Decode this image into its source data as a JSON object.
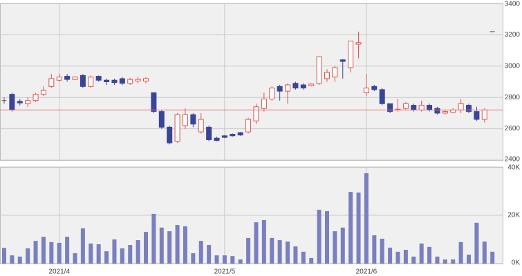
{
  "chart_data": [
    {
      "type": "candlestick",
      "open": [
        2780,
        2820,
        2775,
        2760,
        2780,
        2820,
        2870,
        2910,
        2935,
        2915,
        2940,
        2870,
        2935,
        2910,
        2910,
        2920,
        2890,
        2905,
        2905,
        2830,
        2710,
        2610,
        2520,
        2620,
        2690,
        2580,
        2610,
        2540,
        2555,
        2565,
        2575,
        2580,
        2650,
        2730,
        2790,
        2870,
        2840,
        2890,
        2880,
        2875,
        2890,
        2920,
        2930,
        3040,
        2990,
        3140,
        2830,
        2870,
        2850,
        2760,
        2720,
        2730,
        2750,
        2720,
        2750,
        2730,
        2700,
        2705,
        2720,
        2750,
        2710,
        2660,
        3220
      ],
      "high": [
        2800,
        2830,
        2790,
        2800,
        2830,
        2870,
        2950,
        2950,
        2950,
        2935,
        2950,
        2940,
        2940,
        2920,
        2920,
        2930,
        2925,
        2930,
        2930,
        2830,
        2720,
        2620,
        2700,
        2730,
        2700,
        2700,
        2620,
        2550,
        2560,
        2570,
        2580,
        2670,
        2760,
        2830,
        2870,
        2880,
        2890,
        2900,
        2890,
        2890,
        3060,
        2980,
        3000,
        3045,
        3160,
        3220,
        2950,
        2880,
        2860,
        2760,
        2790,
        2770,
        2760,
        2780,
        2760,
        2740,
        2720,
        2730,
        2790,
        2760,
        2740,
        2730,
        3220
      ],
      "low": [
        2760,
        2710,
        2750,
        2740,
        2770,
        2810,
        2860,
        2900,
        2900,
        2910,
        2860,
        2860,
        2900,
        2880,
        2880,
        2880,
        2880,
        2890,
        2890,
        2700,
        2600,
        2500,
        2510,
        2600,
        2610,
        2570,
        2520,
        2520,
        2540,
        2550,
        2555,
        2570,
        2630,
        2710,
        2780,
        2780,
        2760,
        2850,
        2850,
        2870,
        2880,
        2900,
        2900,
        2920,
        2960,
        3050,
        2810,
        2840,
        2750,
        2700,
        2710,
        2720,
        2710,
        2710,
        2710,
        2690,
        2690,
        2700,
        2700,
        2700,
        2650,
        2640,
        3220
      ],
      "close": [
        2780,
        2720,
        2765,
        2780,
        2820,
        2845,
        2920,
        2930,
        2915,
        2930,
        2870,
        2930,
        2910,
        2900,
        2895,
        2890,
        2915,
        2915,
        2920,
        2710,
        2610,
        2510,
        2690,
        2690,
        2630,
        2660,
        2530,
        2525,
        2545,
        2555,
        2560,
        2660,
        2740,
        2790,
        2860,
        2840,
        2880,
        2860,
        2860,
        2885,
        3060,
        2960,
        2990,
        3030,
        3160,
        3150,
        2860,
        2850,
        2760,
        2710,
        2725,
        2760,
        2720,
        2750,
        2720,
        2700,
        2710,
        2720,
        2760,
        2710,
        2660,
        2720,
        3220
      ],
      "up_color": "#e0504a",
      "down_color": "#3b4597",
      "flat_color": "#555555",
      "hline": 2720,
      "hline_color": "#e87070",
      "ylim": [
        2400,
        3400
      ],
      "yticks": [
        2400,
        2600,
        2800,
        3000,
        3200,
        3400
      ],
      "grid": true
    },
    {
      "type": "bar",
      "categories": [
        null,
        null,
        null,
        null,
        null,
        null,
        null,
        "2021/4",
        null,
        null,
        null,
        null,
        null,
        null,
        null,
        null,
        null,
        null,
        null,
        null,
        null,
        null,
        null,
        null,
        null,
        null,
        null,
        null,
        "2021/5",
        null,
        null,
        null,
        null,
        null,
        null,
        null,
        null,
        null,
        null,
        null,
        null,
        null,
        null,
        null,
        null,
        null,
        "2021/6",
        null,
        null,
        null,
        null,
        null,
        null,
        null,
        null,
        null,
        null,
        null,
        null,
        null,
        null,
        null,
        null
      ],
      "values": [
        6500,
        3400,
        2900,
        6300,
        9400,
        11100,
        8900,
        8600,
        11100,
        4300,
        14600,
        8300,
        8000,
        5100,
        10000,
        6300,
        7700,
        9700,
        13100,
        20600,
        14900,
        13400,
        16000,
        15400,
        4300,
        9400,
        7700,
        3400,
        3400,
        3100,
        1700,
        10600,
        17100,
        18000,
        10600,
        9700,
        9100,
        7100,
        4900,
        2300,
        22300,
        21700,
        13400,
        14900,
        29700,
        29400,
        37400,
        11700,
        10300,
        6600,
        4900,
        5700,
        2900,
        8300,
        6900,
        2900,
        1700,
        1700,
        8900,
        3700,
        16900,
        9100,
        4900
      ],
      "color": "#7a7fbf",
      "ylim": [
        0,
        40000
      ],
      "yticks": [
        {
          "value": 0,
          "label": "0K"
        },
        {
          "value": 20000,
          "label": "20K"
        },
        {
          "value": 40000,
          "label": "40K"
        }
      ],
      "grid": true
    }
  ]
}
